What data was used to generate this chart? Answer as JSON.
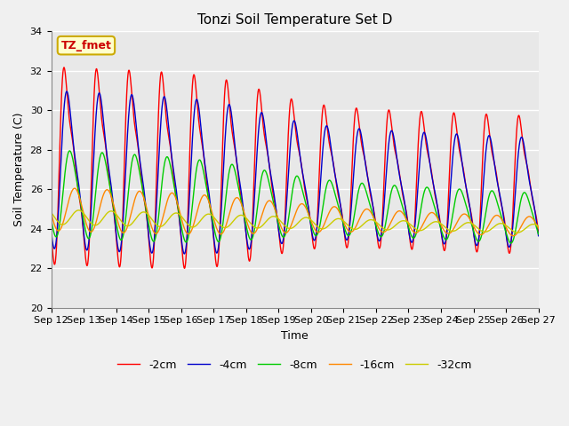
{
  "title": "Tonzi Soil Temperature Set D",
  "xlabel": "Time",
  "ylabel": "Soil Temperature (C)",
  "ylim": [
    20,
    34
  ],
  "xlim": [
    0,
    360
  ],
  "x_tick_labels": [
    "Sep 12",
    "Sep 13",
    "Sep 14",
    "Sep 15",
    "Sep 16",
    "Sep 17",
    "Sep 18",
    "Sep 19",
    "Sep 20",
    "Sep 21",
    "Sep 22",
    "Sep 23",
    "Sep 24",
    "Sep 25",
    "Sep 26",
    "Sep 27"
  ],
  "annotation_text": "TZ_fmet",
  "annotation_color": "#cc0000",
  "annotation_bg": "#ffffcc",
  "annotation_border": "#ccaa00",
  "series_colors": [
    "#ff0000",
    "#0000cc",
    "#00cc00",
    "#ff8800",
    "#cccc00"
  ],
  "series_labels": [
    "-2cm",
    "-4cm",
    "-8cm",
    "-16cm",
    "-32cm"
  ],
  "background_color": "#e8e8e8",
  "plot_bg": "#e8e8e8",
  "grid_color": "#ffffff",
  "title_fontsize": 11,
  "axis_label_fontsize": 9,
  "tick_fontsize": 8
}
